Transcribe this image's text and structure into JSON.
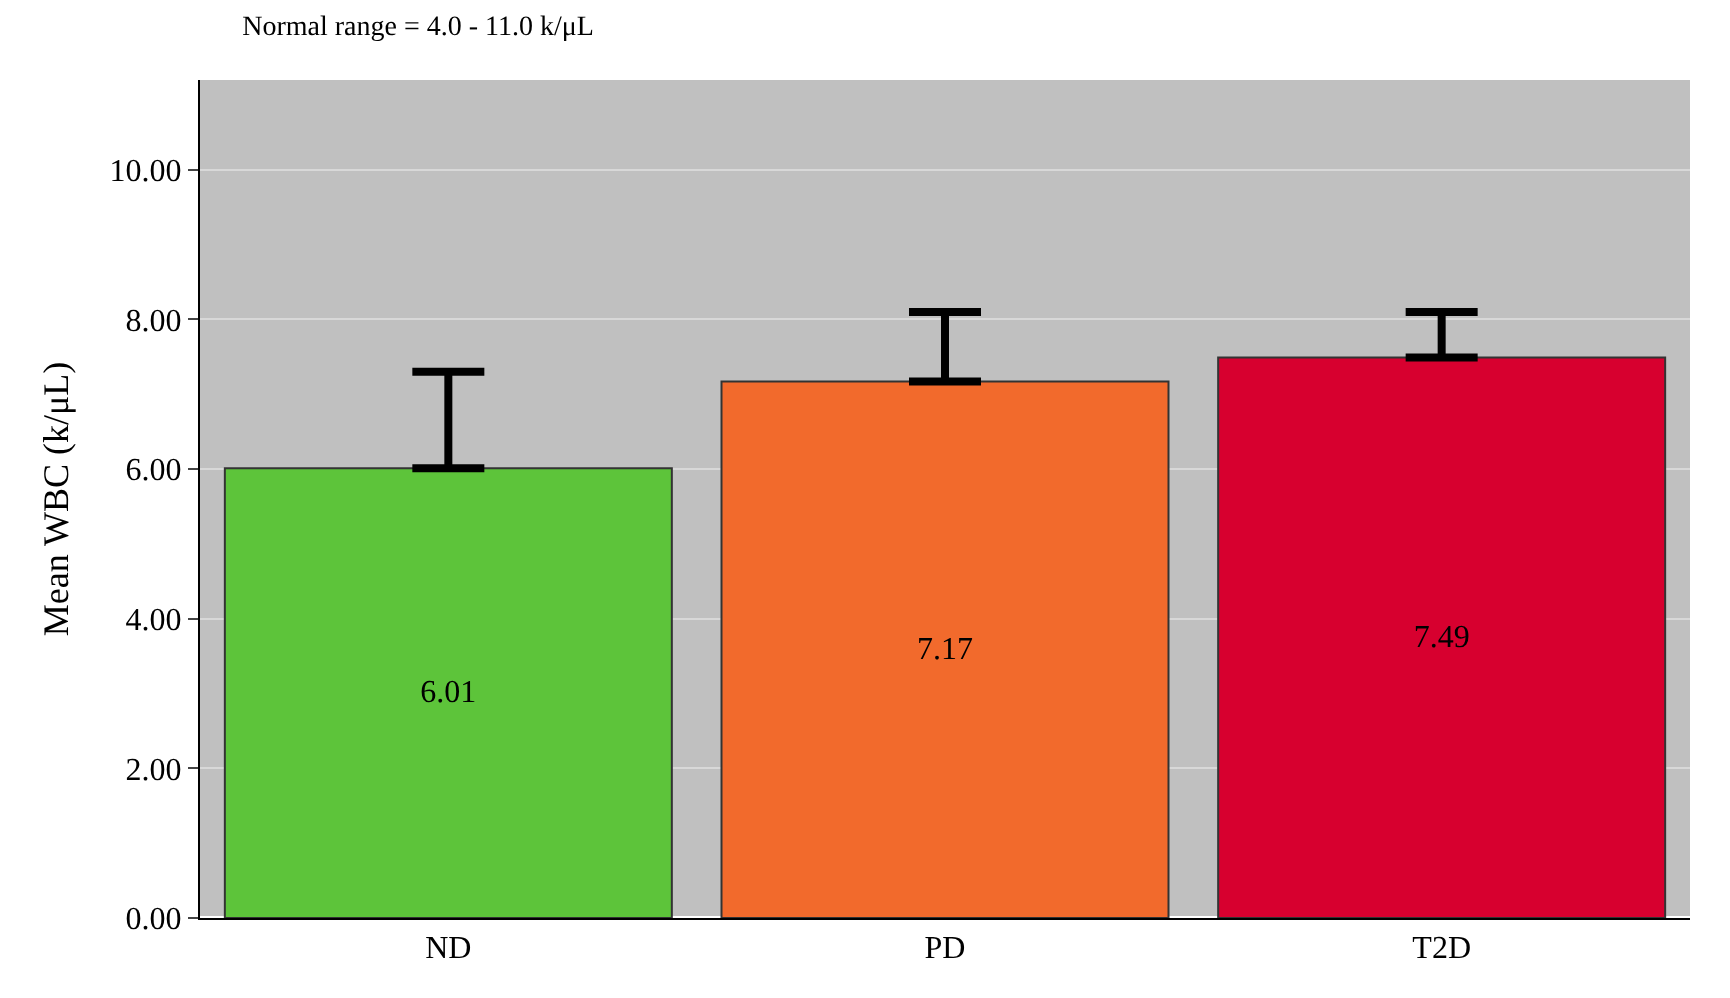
{
  "chart_data": {
    "type": "bar",
    "title": "Normal range = 4.0 - 11.0 k/μL",
    "ylabel": "Mean WBC (k/μL)",
    "categories": [
      "ND",
      "PD",
      "T2D"
    ],
    "values": [
      6.01,
      7.17,
      7.49
    ],
    "colors": [
      "#5dc43a",
      "#f26a2c",
      "#d7002f"
    ],
    "errors": [
      [
        6.01,
        7.3
      ],
      [
        7.17,
        8.1
      ],
      [
        7.49,
        8.1
      ]
    ],
    "ylim": [
      0,
      11.2
    ],
    "yticks": [
      {
        "value": 0,
        "label": "0.00"
      },
      {
        "value": 2,
        "label": "2.00"
      },
      {
        "value": 4,
        "label": "4.00"
      },
      {
        "value": 6,
        "label": "6.00"
      },
      {
        "value": 8,
        "label": "8.00"
      },
      {
        "value": 10,
        "label": "10.00"
      }
    ],
    "grid": "y",
    "data_labels": true
  }
}
